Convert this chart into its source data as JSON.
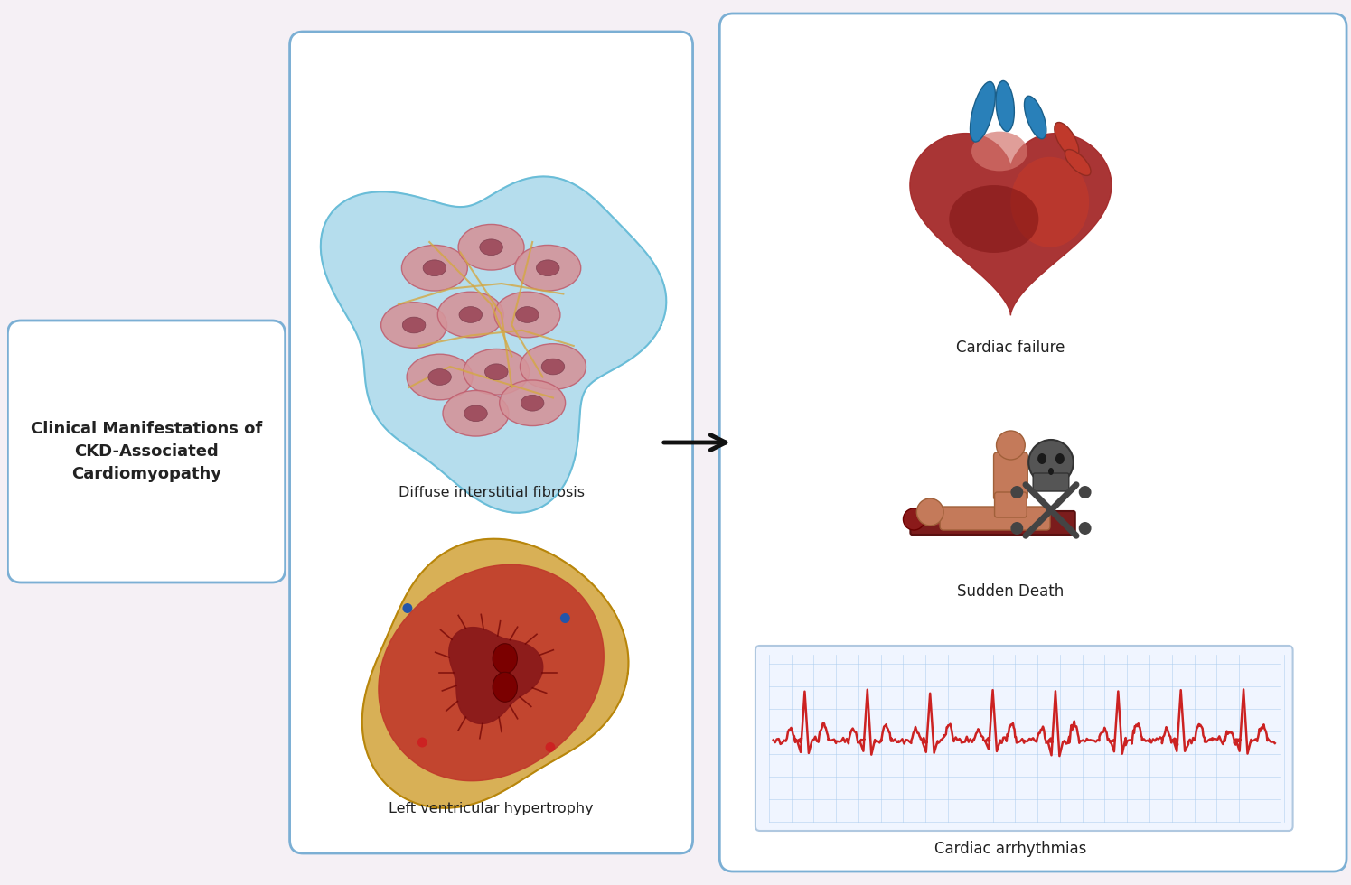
{
  "bg_color": "#f5f0f5",
  "title": "Clinical Manifestations of\nCKD-Associated\nCardiomyopathy",
  "left_box_color": "#7bafd4",
  "middle_box_color": "#7bafd4",
  "right_box_color": "#7bafd4",
  "label_fibrosis": "Diffuse interstitial fibrosis",
  "label_hypertrophy": "Left ventricular hypertrophy",
  "label_cardiac_failure": "Cardiac failure",
  "label_sudden_death": "Sudden Death",
  "label_arrhythmias": "Cardiac arrhythmias",
  "text_color": "#222222",
  "arrow_color": "#111111",
  "ecg_color": "#cc2222",
  "ecg_grid_color": "#aaccee",
  "heart_dark": "#8b1a1a",
  "heart_mid": "#c0392b",
  "heart_light": "#e74c3c",
  "blue_vessel": "#2980b9",
  "figure_color": "#b5651d",
  "skull_color": "#444444",
  "bed_color": "#7b1c1c",
  "fibrosis_cell_color": "#c97a7a",
  "fibrosis_bg": "#a8d8ea",
  "fibrosis_fiber": "#d4a843",
  "lvh_outer": "#d4a843",
  "lvh_muscle": "#c0392b"
}
